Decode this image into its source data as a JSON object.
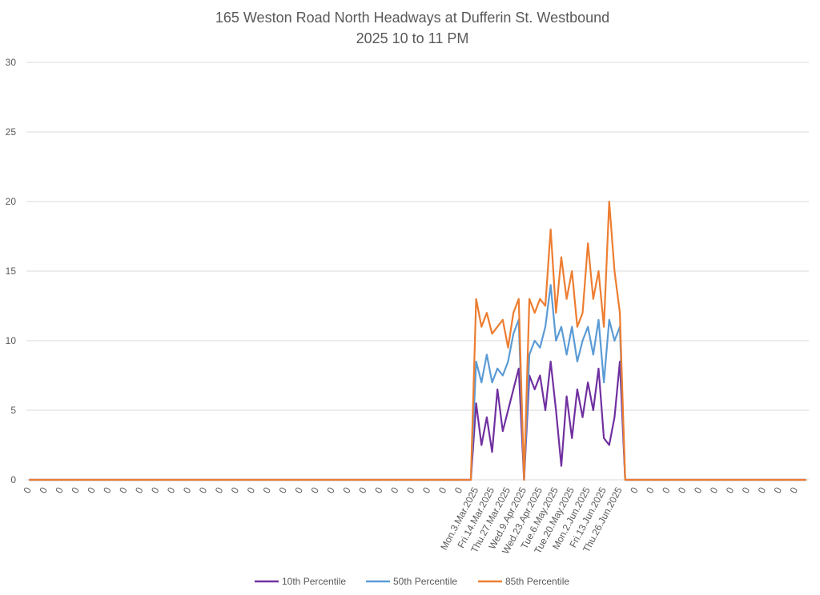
{
  "chart_data": {
    "type": "line",
    "title": "165 Weston Road North Headways at Dufferin St. Westbound",
    "subtitle": "2025 10 to 11 PM",
    "categories": [
      "0",
      null,
      null,
      "0",
      null,
      null,
      "0",
      null,
      null,
      "0",
      null,
      null,
      "0",
      null,
      null,
      "0",
      null,
      null,
      "0",
      null,
      null,
      "0",
      null,
      null,
      "0",
      null,
      null,
      "0",
      null,
      null,
      "0",
      null,
      null,
      "0",
      null,
      null,
      "0",
      null,
      null,
      "0",
      null,
      null,
      "0",
      null,
      null,
      "0",
      null,
      null,
      "0",
      null,
      null,
      "0",
      null,
      null,
      "0",
      null,
      null,
      "0",
      null,
      null,
      "0",
      null,
      null,
      "0",
      null,
      null,
      "0",
      null,
      null,
      "0",
      null,
      null,
      "0",
      null,
      null,
      "0",
      null,
      null,
      "0",
      null,
      null,
      "0",
      null,
      null,
      "Mon.3.Mar.2025",
      null,
      null,
      "Fri.14.Mar.2025",
      null,
      null,
      "Thu.27.Mar.2025",
      null,
      null,
      "Wed.9.Apr.2025",
      null,
      null,
      "Wed.23.Apr.2025",
      null,
      null,
      "Tue.6.May.2025",
      null,
      null,
      "Tue.20.May.2025",
      null,
      null,
      "Mon.2.Jun.2025",
      null,
      null,
      "Fri.13.Jun.2025",
      null,
      null,
      "Thu.26.Jun.2025",
      null,
      null,
      "0",
      null,
      null,
      "0",
      null,
      null,
      "0",
      null,
      null,
      "0",
      null,
      null,
      "0",
      null,
      null,
      "0",
      null,
      null,
      "0",
      null,
      null,
      "0",
      null,
      null,
      "0",
      null,
      null,
      "0",
      null,
      null,
      "0",
      null,
      null
    ],
    "series": [
      {
        "name": "10th Percentile",
        "color": "#7030a0",
        "values": [
          0,
          0,
          0,
          0,
          0,
          0,
          0,
          0,
          0,
          0,
          0,
          0,
          0,
          0,
          0,
          0,
          0,
          0,
          0,
          0,
          0,
          0,
          0,
          0,
          0,
          0,
          0,
          0,
          0,
          0,
          0,
          0,
          0,
          0,
          0,
          0,
          0,
          0,
          0,
          0,
          0,
          0,
          0,
          0,
          0,
          0,
          0,
          0,
          0,
          0,
          0,
          0,
          0,
          0,
          0,
          0,
          0,
          0,
          0,
          0,
          0,
          0,
          0,
          0,
          0,
          0,
          0,
          0,
          0,
          0,
          0,
          0,
          0,
          0,
          0,
          0,
          0,
          0,
          0,
          0,
          0,
          0,
          0,
          0,
          5.5,
          2.5,
          4.5,
          2,
          6.5,
          3.5,
          5,
          6.5,
          8,
          0,
          7.5,
          6.5,
          7.5,
          5,
          8.5,
          5,
          1,
          6,
          3,
          6.5,
          4.5,
          7,
          5,
          8,
          3,
          2.5,
          4.5,
          8.5,
          0,
          0,
          0,
          0,
          0,
          0,
          0,
          0,
          0,
          0,
          0,
          0,
          0,
          0,
          0,
          0,
          0,
          0,
          0,
          0,
          0,
          0,
          0,
          0,
          0,
          0,
          0,
          0,
          0,
          0,
          0,
          0,
          0,
          0,
          0
        ]
      },
      {
        "name": "50th Percentile",
        "color": "#5b9bd5",
        "values": [
          0,
          0,
          0,
          0,
          0,
          0,
          0,
          0,
          0,
          0,
          0,
          0,
          0,
          0,
          0,
          0,
          0,
          0,
          0,
          0,
          0,
          0,
          0,
          0,
          0,
          0,
          0,
          0,
          0,
          0,
          0,
          0,
          0,
          0,
          0,
          0,
          0,
          0,
          0,
          0,
          0,
          0,
          0,
          0,
          0,
          0,
          0,
          0,
          0,
          0,
          0,
          0,
          0,
          0,
          0,
          0,
          0,
          0,
          0,
          0,
          0,
          0,
          0,
          0,
          0,
          0,
          0,
          0,
          0,
          0,
          0,
          0,
          0,
          0,
          0,
          0,
          0,
          0,
          0,
          0,
          0,
          0,
          0,
          0,
          8.5,
          7,
          9,
          7,
          8,
          7.5,
          8.5,
          10.5,
          11.5,
          0,
          9,
          10,
          9.5,
          11,
          14,
          10,
          11,
          9,
          11,
          8.5,
          10,
          11,
          9,
          11.5,
          7,
          11.5,
          10,
          11,
          0,
          0,
          0,
          0,
          0,
          0,
          0,
          0,
          0,
          0,
          0,
          0,
          0,
          0,
          0,
          0,
          0,
          0,
          0,
          0,
          0,
          0,
          0,
          0,
          0,
          0,
          0,
          0,
          0,
          0,
          0,
          0,
          0,
          0,
          0
        ]
      },
      {
        "name": "85th Percentile",
        "color": "#ed7d31",
        "values": [
          0,
          0,
          0,
          0,
          0,
          0,
          0,
          0,
          0,
          0,
          0,
          0,
          0,
          0,
          0,
          0,
          0,
          0,
          0,
          0,
          0,
          0,
          0,
          0,
          0,
          0,
          0,
          0,
          0,
          0,
          0,
          0,
          0,
          0,
          0,
          0,
          0,
          0,
          0,
          0,
          0,
          0,
          0,
          0,
          0,
          0,
          0,
          0,
          0,
          0,
          0,
          0,
          0,
          0,
          0,
          0,
          0,
          0,
          0,
          0,
          0,
          0,
          0,
          0,
          0,
          0,
          0,
          0,
          0,
          0,
          0,
          0,
          0,
          0,
          0,
          0,
          0,
          0,
          0,
          0,
          0,
          0,
          0,
          0,
          13,
          11,
          12,
          10.5,
          11,
          11.5,
          9.5,
          12,
          13,
          0,
          13,
          12,
          13,
          12.5,
          18,
          12,
          16,
          13,
          15,
          11,
          12,
          17,
          13,
          15,
          11,
          20,
          15,
          12,
          0,
          0,
          0,
          0,
          0,
          0,
          0,
          0,
          0,
          0,
          0,
          0,
          0,
          0,
          0,
          0,
          0,
          0,
          0,
          0,
          0,
          0,
          0,
          0,
          0,
          0,
          0,
          0,
          0,
          0,
          0,
          0,
          0,
          0,
          0
        ]
      }
    ],
    "ylim": [
      0,
      30
    ],
    "yticks": [
      0,
      5,
      10,
      15,
      20,
      25,
      30
    ],
    "grid": true
  }
}
